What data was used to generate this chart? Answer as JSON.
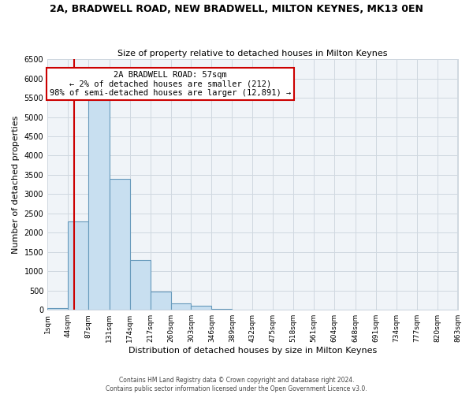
{
  "title": "2A, BRADWELL ROAD, NEW BRADWELL, MILTON KEYNES, MK13 0EN",
  "subtitle": "Size of property relative to detached houses in Milton Keynes",
  "xlabel": "Distribution of detached houses by size in Milton Keynes",
  "ylabel": "Number of detached properties",
  "bar_color": "#c8dff0",
  "bar_edge_color": "#6699bb",
  "background_color": "#ffffff",
  "plot_bg_color": "#f0f4f8",
  "grid_color": "#d0d8e0",
  "bin_edges": [
    1,
    44,
    87,
    131,
    174,
    217,
    260,
    303,
    346,
    389,
    432,
    475,
    518,
    561,
    604,
    648,
    691,
    734,
    777,
    820,
    863
  ],
  "bin_labels": [
    "1sqm",
    "44sqm",
    "87sqm",
    "131sqm",
    "174sqm",
    "217sqm",
    "260sqm",
    "303sqm",
    "346sqm",
    "389sqm",
    "432sqm",
    "475sqm",
    "518sqm",
    "561sqm",
    "604sqm",
    "648sqm",
    "691sqm",
    "734sqm",
    "777sqm",
    "820sqm",
    "863sqm"
  ],
  "bar_heights": [
    50,
    2300,
    5450,
    3400,
    1300,
    480,
    175,
    100,
    30,
    10,
    5,
    3,
    0,
    0,
    0,
    0,
    0,
    0,
    0,
    0
  ],
  "property_size": 57,
  "red_line_color": "#cc0000",
  "annotation_title": "2A BRADWELL ROAD: 57sqm",
  "annotation_line1": "← 2% of detached houses are smaller (212)",
  "annotation_line2": "98% of semi-detached houses are larger (12,891) →",
  "annotation_box_color": "#ffffff",
  "annotation_border_color": "#cc0000",
  "ylim": [
    0,
    6500
  ],
  "yticks": [
    0,
    500,
    1000,
    1500,
    2000,
    2500,
    3000,
    3500,
    4000,
    4500,
    5000,
    5500,
    6000,
    6500
  ],
  "footer_line1": "Contains HM Land Registry data © Crown copyright and database right 2024.",
  "footer_line2": "Contains public sector information licensed under the Open Government Licence v3.0."
}
